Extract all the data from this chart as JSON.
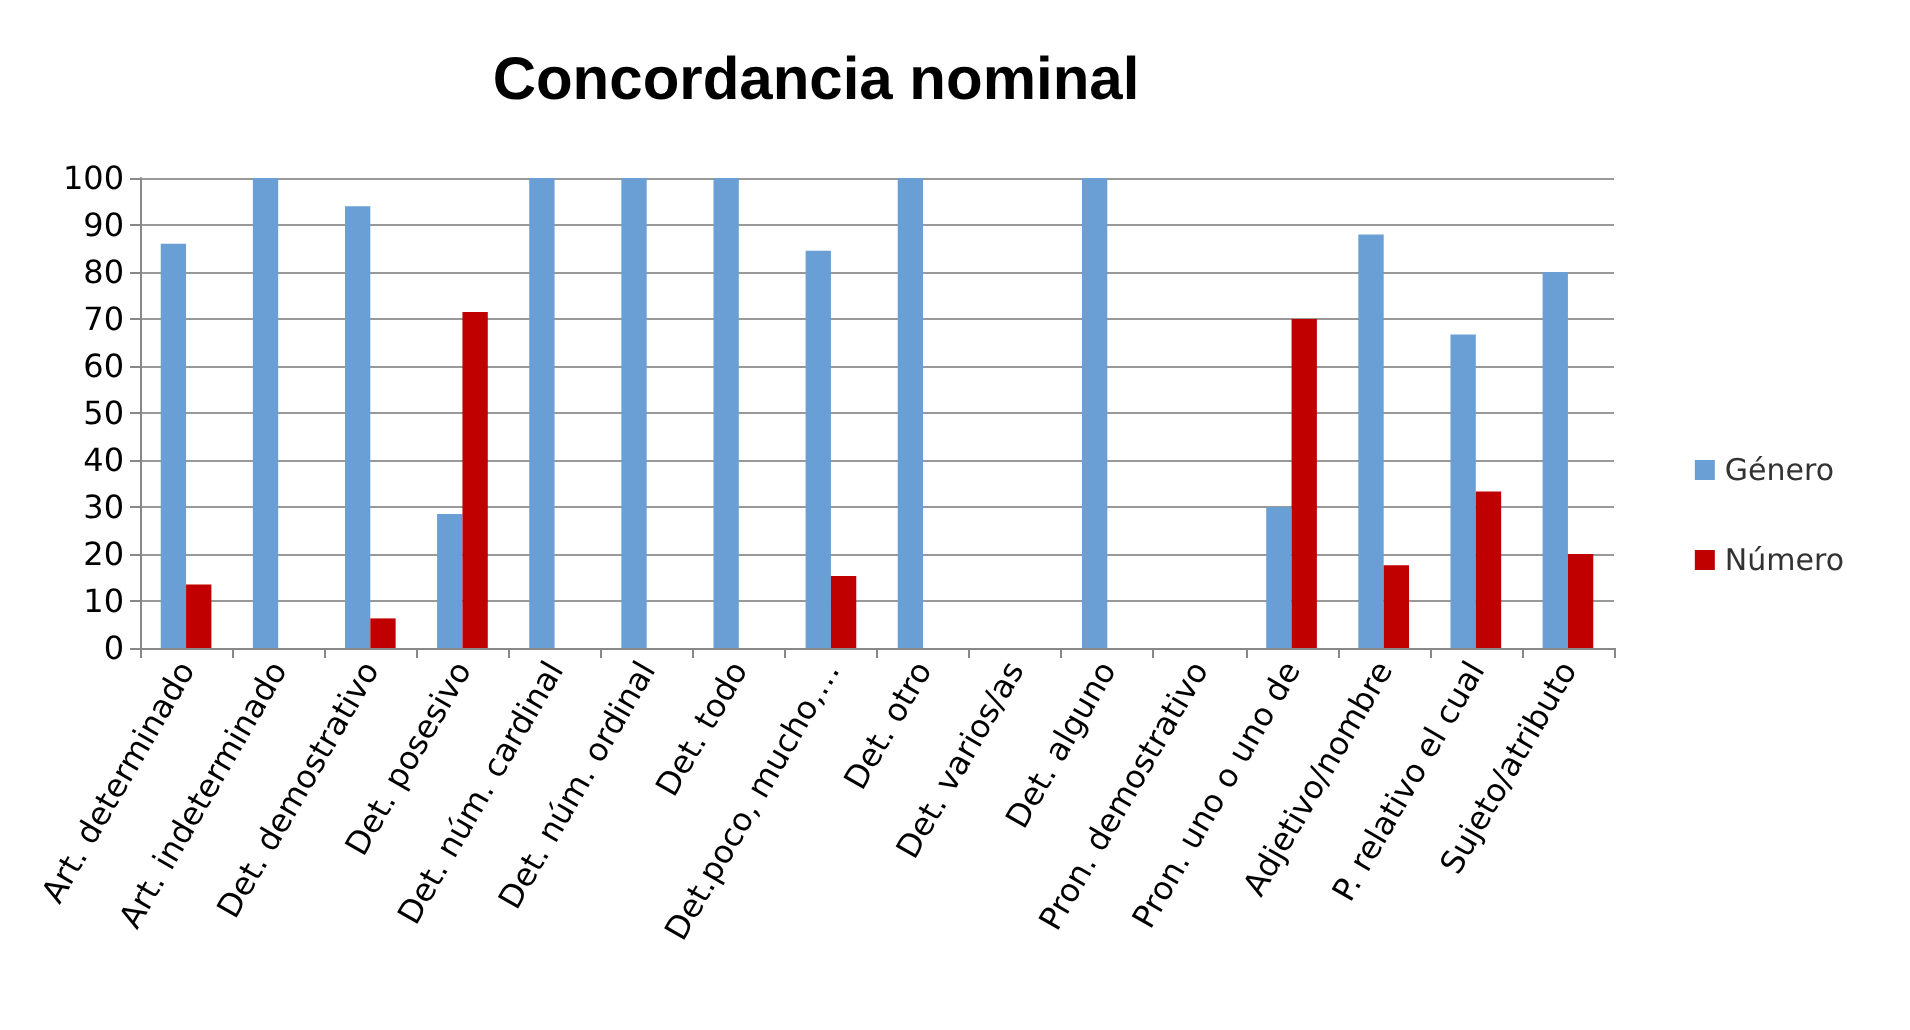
{
  "chart_data": {
    "type": "bar",
    "title": "Concordancia nominal",
    "categories": [
      "Art. determinado",
      "Art. indeterminado",
      "Det. demostrativo",
      "Det. posesivo",
      "Det. núm. cardinal",
      "Det. núm. ordinal",
      "Det. todo",
      "Det.poco, mucho,…",
      "Det. otro",
      "Det. varios/as",
      "Det. alguno",
      "Pron. demostrativo",
      "Pron. uno o uno de",
      "Adjetivo/nombre",
      "P. relativo el cual",
      "Sujeto/atributo"
    ],
    "series": [
      {
        "name": "Género",
        "color": "#6a9fd6",
        "values": [
          86,
          100,
          94,
          28.5,
          100,
          100,
          100,
          84.5,
          100,
          null,
          100,
          null,
          30,
          88,
          66.7,
          80
        ]
      },
      {
        "name": "Número",
        "color": "#c00000",
        "values": [
          13.5,
          null,
          6.3,
          71.5,
          null,
          null,
          null,
          15.3,
          null,
          null,
          null,
          null,
          70,
          17.6,
          33.3,
          20
        ]
      }
    ],
    "ylim": [
      0,
      100
    ],
    "yticks": [
      0,
      10,
      20,
      30,
      40,
      50,
      60,
      70,
      80,
      90,
      100
    ],
    "grid": "y",
    "legend": "right"
  }
}
